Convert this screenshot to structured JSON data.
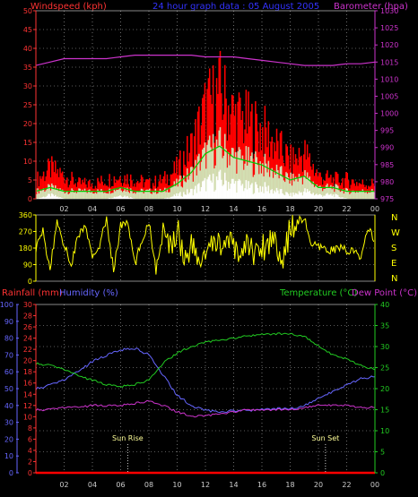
{
  "header": {
    "left_label": "Windspeed (kph)",
    "center_label": "24 hour graph data : 05 August 2005",
    "right_label": "Barometer (hpa)"
  },
  "colors": {
    "wind_max": "#ff0000",
    "wind_avg": "#00cc00",
    "wind_min": "#ffffff",
    "wind_pale": "#ccffcc",
    "barometer": "#cc33cc",
    "direction": "#ffff00",
    "humidity": "#6666ff",
    "temperature": "#22cc22",
    "dew_point": "#cc33cc",
    "rainfall": "#ff0000",
    "grid": "#ffffff",
    "axis_red": "#ff3333",
    "axis_pink": "#cc33cc",
    "axis_green": "#22cc22",
    "axis_blue": "#6666ff",
    "axis_yellow": "#ffff00",
    "time_labels": "#cccccc"
  },
  "time_axis": [
    "02",
    "04",
    "06",
    "08",
    "10",
    "12",
    "14",
    "16",
    "18",
    "20",
    "22",
    "00"
  ],
  "bottom_header": {
    "rainfall_label": "Rainfall (mm)",
    "humidity_label": "Humidity (%)",
    "temperature_label": "Temperature (°C)",
    "dewpoint_label": "Dew Point (°C)"
  },
  "annotations": {
    "sunrise": "Sun Rise",
    "sunset": "Sun Set"
  },
  "chart_data": [
    {
      "type": "area",
      "series_label": "Windspeed (kph)",
      "yaxis_left": {
        "ticks": [
          "0",
          "5",
          "10",
          "15",
          "20",
          "25",
          "30",
          "35",
          "40",
          "45",
          "50"
        ],
        "ylim": [
          0,
          50
        ]
      },
      "yaxis_right": {
        "label": "Barometer (hpa)",
        "ticks": [
          "975",
          "980",
          "985",
          "990",
          "995",
          "1000",
          "1005",
          "1010",
          "1015",
          "1020",
          "1025",
          "1030"
        ],
        "ylim": [
          975,
          1030
        ]
      },
      "x": [
        0,
        1,
        2,
        3,
        4,
        5,
        6,
        7,
        8,
        9,
        10,
        11,
        12,
        13,
        14,
        15,
        16,
        17,
        18,
        19,
        20,
        21,
        22,
        23,
        24
      ],
      "series": [
        {
          "name": "max",
          "values": [
            5,
            8,
            6,
            4,
            4,
            5,
            6,
            5,
            4,
            5,
            8,
            14,
            24,
            28,
            22,
            20,
            18,
            14,
            10,
            12,
            6,
            5,
            5,
            4,
            4
          ]
        },
        {
          "name": "avg",
          "values": [
            2,
            3,
            2,
            2,
            2,
            2,
            3,
            2,
            2,
            2,
            4,
            7,
            12,
            14,
            11,
            10,
            9,
            7,
            5,
            6,
            3,
            3,
            2,
            2,
            2
          ]
        },
        {
          "name": "min",
          "values": [
            0,
            1,
            0,
            0,
            0,
            0,
            1,
            0,
            0,
            0,
            1,
            2,
            4,
            5,
            4,
            3,
            3,
            2,
            1,
            2,
            1,
            1,
            0,
            0,
            0
          ]
        },
        {
          "name": "barometer",
          "axis": "right",
          "values": [
            1014,
            1015,
            1016,
            1016,
            1016,
            1016,
            1016.5,
            1017,
            1017,
            1017,
            1017,
            1017,
            1016.5,
            1016.5,
            1016.5,
            1016,
            1015.5,
            1015,
            1014.5,
            1014,
            1014,
            1014,
            1014.5,
            1014.5,
            1015
          ]
        }
      ]
    },
    {
      "type": "line",
      "series_label": "Wind Direction",
      "yaxis_left": {
        "ticks": [
          "0",
          "90",
          "180",
          "270",
          "360"
        ],
        "ylim": [
          0,
          360
        ]
      },
      "yaxis_right": {
        "ticks": [
          "N",
          "W",
          "S",
          "E",
          "N"
        ]
      },
      "x": [
        0,
        0.5,
        1,
        1.5,
        2,
        2.5,
        3,
        3.5,
        4,
        4.5,
        5,
        5.5,
        6,
        6.5,
        7,
        7.5,
        8,
        8.5,
        9,
        9.5,
        10,
        10.5,
        11,
        11.5,
        12,
        12.5,
        13,
        13.5,
        14,
        14.5,
        15,
        15.5,
        16,
        16.5,
        17,
        17.5,
        18,
        18.5,
        19,
        19.5,
        20,
        20.5,
        21,
        21.5,
        22,
        22.5,
        23,
        23.5,
        24
      ],
      "series": [
        {
          "name": "direction",
          "values": [
            180,
            270,
            60,
            330,
            200,
            90,
            250,
            300,
            120,
            200,
            330,
            60,
            300,
            320,
            90,
            220,
            330,
            60,
            250,
            180,
            300,
            120,
            200,
            100,
            150,
            180,
            220,
            200,
            180,
            150,
            200,
            160,
            180,
            220,
            240,
            80,
            300,
            330,
            340,
            200,
            180,
            170,
            170,
            180,
            170,
            160,
            120,
            300,
            200
          ]
        }
      ]
    },
    {
      "type": "line",
      "yaxis_left_rain": {
        "label": "Rainfall (mm)",
        "ticks": [
          "0",
          "2",
          "4",
          "6",
          "8",
          "10",
          "12",
          "14",
          "16",
          "18",
          "20",
          "22",
          "24",
          "26",
          "28",
          "30"
        ],
        "ylim": [
          0,
          30
        ]
      },
      "yaxis_left_humidity": {
        "label": "Humidity (%)",
        "ticks": [
          "0",
          "10",
          "20",
          "30",
          "40",
          "50",
          "60",
          "70",
          "80",
          "90",
          "100"
        ],
        "ylim": [
          0,
          100
        ]
      },
      "yaxis_right": {
        "label": "Temperature (°C)",
        "ticks": [
          "0",
          "5",
          "10",
          "15",
          "20",
          "25",
          "30",
          "35",
          "40"
        ],
        "ylim": [
          0,
          40
        ]
      },
      "x": [
        0,
        1,
        2,
        3,
        4,
        5,
        6,
        7,
        8,
        9,
        10,
        11,
        12,
        13,
        14,
        15,
        16,
        17,
        18,
        19,
        20,
        21,
        22,
        23,
        24
      ],
      "series": [
        {
          "name": "humidity",
          "axis": "humidity",
          "values": [
            50,
            52,
            55,
            60,
            66,
            70,
            73,
            74,
            70,
            58,
            46,
            40,
            37,
            36,
            37,
            37,
            38,
            38,
            38,
            40,
            44,
            48,
            52,
            56,
            57
          ]
        },
        {
          "name": "temperature",
          "axis": "right",
          "values": [
            26,
            25.5,
            24.5,
            23,
            22,
            21,
            20.5,
            21,
            22,
            26,
            28.5,
            30,
            31,
            31.5,
            32,
            32.5,
            33,
            33,
            33,
            32.5,
            30,
            28,
            27,
            25.5,
            24.5
          ]
        },
        {
          "name": "dew_point",
          "axis": "right",
          "values": [
            15,
            15,
            15.5,
            15.5,
            16,
            16,
            16,
            16.5,
            17,
            16,
            14.5,
            13.5,
            13.5,
            14,
            14.5,
            15,
            15,
            15,
            15,
            15.5,
            16,
            16,
            16,
            15.5,
            15.5
          ]
        },
        {
          "name": "rainfall",
          "axis": "rain",
          "values": [
            0,
            0,
            0,
            0,
            0,
            0,
            0,
            0,
            0,
            0,
            0,
            0,
            0,
            0,
            0,
            0,
            0,
            0,
            0,
            0,
            0,
            0,
            0,
            0,
            0
          ]
        }
      ],
      "markers": [
        {
          "label": "Sun Rise",
          "x": 6.5
        },
        {
          "label": "Sun Set",
          "x": 20.5
        }
      ]
    }
  ]
}
